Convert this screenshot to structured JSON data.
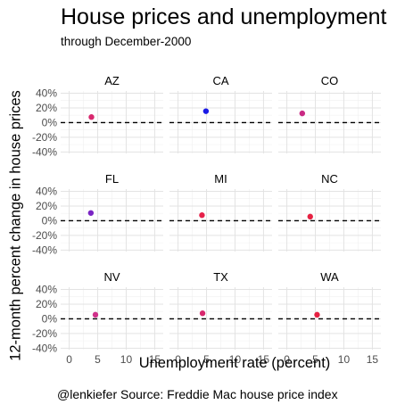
{
  "chart_data": {
    "type": "scatter",
    "title": "House prices and unemployment",
    "subtitle": "through December-2000",
    "xlabel": "Unemployment rate (percent)",
    "ylabel": "12-month percent change in house prices",
    "caption": "@lenkiefer Source: Freddie Mac house price index",
    "xlim": [
      -1.5,
      16.5
    ],
    "ylim": [
      -42,
      43
    ],
    "x_ticks": [
      0,
      5,
      10,
      15
    ],
    "x_tick_labels": [
      "0",
      "5",
      "10",
      "15"
    ],
    "y_ticks": [
      -40,
      -20,
      0,
      20,
      40
    ],
    "y_tick_labels": [
      "-40%",
      "-20%",
      "0%",
      "20%",
      "40%"
    ],
    "reference_line_y": 0,
    "grid": true,
    "facet_layout": "3x3",
    "facets": [
      {
        "name": "AZ",
        "points": [
          {
            "x": 3.9,
            "y": 7.5,
            "color": "#d8286e"
          }
        ]
      },
      {
        "name": "CA",
        "points": [
          {
            "x": 4.9,
            "y": 15.5,
            "color": "#1a1ae6"
          }
        ]
      },
      {
        "name": "CO",
        "points": [
          {
            "x": 2.7,
            "y": 12.5,
            "color": "#c92a84"
          }
        ]
      },
      {
        "name": "FL",
        "points": [
          {
            "x": 3.8,
            "y": 10.5,
            "color": "#7a24c4"
          }
        ]
      },
      {
        "name": "MI",
        "points": [
          {
            "x": 4.2,
            "y": 7.5,
            "color": "#e6214a"
          }
        ]
      },
      {
        "name": "NC",
        "points": [
          {
            "x": 4.1,
            "y": 5.5,
            "color": "#e62142"
          }
        ]
      },
      {
        "name": "NV",
        "points": [
          {
            "x": 4.6,
            "y": 5.5,
            "color": "#d0308a"
          }
        ]
      },
      {
        "name": "TX",
        "points": [
          {
            "x": 4.3,
            "y": 7.5,
            "color": "#d8286e"
          }
        ]
      },
      {
        "name": "WA",
        "points": [
          {
            "x": 5.3,
            "y": 5.5,
            "color": "#e62142"
          }
        ]
      }
    ]
  }
}
